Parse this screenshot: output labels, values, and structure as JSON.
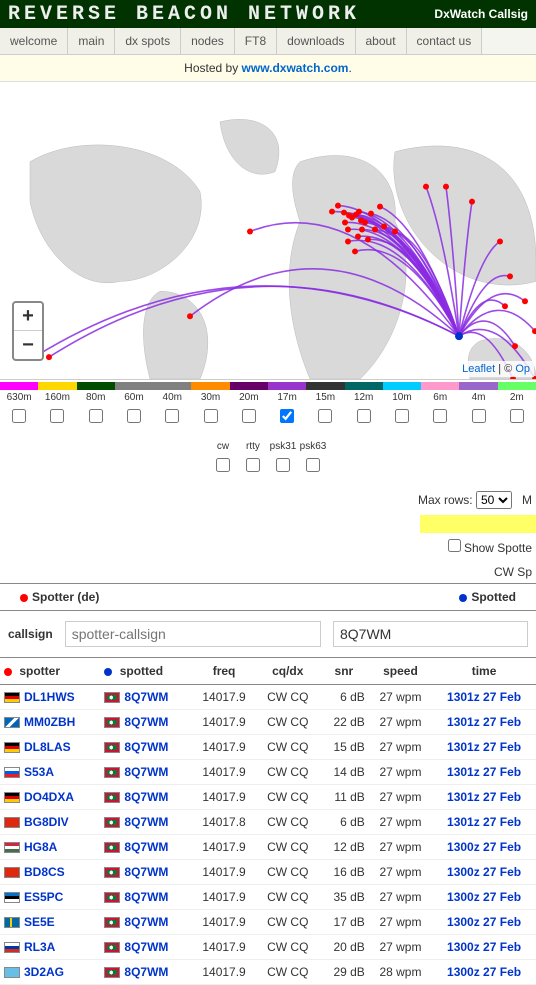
{
  "header": {
    "title": "REVERSE BEACON NETWORK",
    "right": "DxWatch Callsig"
  },
  "nav": [
    "welcome",
    "main",
    "dx spots",
    "nodes",
    "FT8",
    "downloads",
    "about",
    "contact us"
  ],
  "hosted": {
    "prefix": "Hosted by ",
    "link": "www.dxwatch.com",
    "suffix": "."
  },
  "map": {
    "zoom_in": "+",
    "zoom_out": "−",
    "attr_leaflet": "Leaflet",
    "attr_sep": " | © ",
    "attr_osm": "Op",
    "hub": [
      459,
      255
    ],
    "targets": [
      [
        332,
        130
      ],
      [
        338,
        124
      ],
      [
        344,
        131
      ],
      [
        349,
        134
      ],
      [
        345,
        141
      ],
      [
        352,
        136
      ],
      [
        348,
        148
      ],
      [
        356,
        133
      ],
      [
        359,
        130
      ],
      [
        361,
        139
      ],
      [
        362,
        148
      ],
      [
        358,
        155
      ],
      [
        365,
        141
      ],
      [
        371,
        132
      ],
      [
        375,
        148
      ],
      [
        380,
        125
      ],
      [
        355,
        170
      ],
      [
        348,
        160
      ],
      [
        368,
        158
      ],
      [
        384,
        145
      ],
      [
        395,
        150
      ],
      [
        426,
        105
      ],
      [
        446,
        105
      ],
      [
        472,
        120
      ],
      [
        500,
        160
      ],
      [
        510,
        195
      ],
      [
        505,
        225
      ],
      [
        525,
        220
      ],
      [
        515,
        265
      ],
      [
        535,
        250
      ],
      [
        535,
        298
      ],
      [
        513,
        298
      ],
      [
        190,
        235
      ],
      [
        36,
        275
      ],
      [
        49,
        276
      ],
      [
        250,
        150
      ]
    ],
    "land_color": "#d9d9d9",
    "ocean_gradient_top": "#f2f2f2",
    "ocean_gradient_bottom": "#ffffff",
    "arc_color": "#8a2be2",
    "hub_color": "#0033cc",
    "node_color": "#ff0000"
  },
  "bands": {
    "colors": [
      "#ff00ff",
      "#ffd700",
      "#004d00",
      "#808080",
      "#808080",
      "#ff8c00",
      "#660066",
      "#9933cc",
      "#333333",
      "#006666",
      "#00ccff",
      "#ff99cc",
      "#9966cc",
      "#66ff66"
    ],
    "labels": [
      "630m",
      "160m",
      "80m",
      "60m",
      "40m",
      "30m",
      "20m",
      "17m",
      "15m",
      "12m",
      "10m",
      "6m",
      "4m",
      "2m"
    ],
    "checked": [
      false,
      false,
      false,
      false,
      false,
      false,
      false,
      true,
      false,
      false,
      false,
      false,
      false,
      false
    ]
  },
  "modes": {
    "labels": [
      "cw",
      "rtty",
      "psk31",
      "psk63"
    ],
    "checked": [
      false,
      false,
      false,
      false
    ]
  },
  "controls": {
    "max_rows_label": "Max rows:",
    "max_rows_value": "50",
    "max_rows_trailing": "M",
    "show_spotters": "Show Spotte",
    "cw_label": "CW Sp"
  },
  "legend": {
    "spotter": "Spotter (de)",
    "spotted": "Spotted"
  },
  "filter": {
    "callsign_label": "callsign",
    "spotter_placeholder": "spotter-callsign",
    "spotted_value": "8Q7WM"
  },
  "table": {
    "columns": [
      "spotter",
      "spotted",
      "freq",
      "cq/dx",
      "snr",
      "speed",
      "time"
    ],
    "rows": [
      {
        "spotter_flag": "de",
        "spotter": "DL1HWS",
        "spotted_flag": "mv",
        "spotted": "8Q7WM",
        "freq": "14017.9",
        "cqdx": "CW CQ",
        "snr": "6 dB",
        "speed": "27 wpm",
        "time": "1301z 27 Feb"
      },
      {
        "spotter_flag": "sco",
        "spotter": "MM0ZBH",
        "spotted_flag": "mv",
        "spotted": "8Q7WM",
        "freq": "14017.9",
        "cqdx": "CW CQ",
        "snr": "22 dB",
        "speed": "27 wpm",
        "time": "1301z 27 Feb"
      },
      {
        "spotter_flag": "de",
        "spotter": "DL8LAS",
        "spotted_flag": "mv",
        "spotted": "8Q7WM",
        "freq": "14017.9",
        "cqdx": "CW CQ",
        "snr": "15 dB",
        "speed": "27 wpm",
        "time": "1301z 27 Feb"
      },
      {
        "spotter_flag": "si",
        "spotter": "S53A",
        "spotted_flag": "mv",
        "spotted": "8Q7WM",
        "freq": "14017.9",
        "cqdx": "CW CQ",
        "snr": "14 dB",
        "speed": "27 wpm",
        "time": "1301z 27 Feb"
      },
      {
        "spotter_flag": "de",
        "spotter": "DO4DXA",
        "spotted_flag": "mv",
        "spotted": "8Q7WM",
        "freq": "14017.9",
        "cqdx": "CW CQ",
        "snr": "11 dB",
        "speed": "27 wpm",
        "time": "1301z 27 Feb"
      },
      {
        "spotter_flag": "cn",
        "spotter": "BG8DIV",
        "spotted_flag": "mv",
        "spotted": "8Q7WM",
        "freq": "14017.8",
        "cqdx": "CW CQ",
        "snr": "6 dB",
        "speed": "27 wpm",
        "time": "1301z 27 Feb"
      },
      {
        "spotter_flag": "hu",
        "spotter": "HG8A",
        "spotted_flag": "mv",
        "spotted": "8Q7WM",
        "freq": "14017.9",
        "cqdx": "CW CQ",
        "snr": "12 dB",
        "speed": "27 wpm",
        "time": "1300z 27 Feb"
      },
      {
        "spotter_flag": "cn",
        "spotter": "BD8CS",
        "spotted_flag": "mv",
        "spotted": "8Q7WM",
        "freq": "14017.9",
        "cqdx": "CW CQ",
        "snr": "16 dB",
        "speed": "27 wpm",
        "time": "1300z 27 Feb"
      },
      {
        "spotter_flag": "ee",
        "spotter": "ES5PC",
        "spotted_flag": "mv",
        "spotted": "8Q7WM",
        "freq": "14017.9",
        "cqdx": "CW CQ",
        "snr": "35 dB",
        "speed": "27 wpm",
        "time": "1300z 27 Feb"
      },
      {
        "spotter_flag": "se",
        "spotter": "SE5E",
        "spotted_flag": "mv",
        "spotted": "8Q7WM",
        "freq": "14017.9",
        "cqdx": "CW CQ",
        "snr": "17 dB",
        "speed": "27 wpm",
        "time": "1300z 27 Feb"
      },
      {
        "spotter_flag": "ru",
        "spotter": "RL3A",
        "spotted_flag": "mv",
        "spotted": "8Q7WM",
        "freq": "14017.9",
        "cqdx": "CW CQ",
        "snr": "20 dB",
        "speed": "27 wpm",
        "time": "1300z 27 Feb"
      },
      {
        "spotter_flag": "fj",
        "spotter": "3D2AG",
        "spotted_flag": "mv",
        "spotted": "8Q7WM",
        "freq": "14017.9",
        "cqdx": "CW CQ",
        "snr": "29 dB",
        "speed": "28 wpm",
        "time": "1300z 27 Feb"
      }
    ]
  },
  "flags": {
    "de": "linear-gradient(to bottom,#000 33%,#dd0000 33%,#dd0000 66%,#ffce00 66%)",
    "sco": "linear-gradient(135deg,#0065bd 40%,#fff 40%,#fff 60%,#0065bd 60%),linear-gradient(45deg,#0065bd 40%,#fff 40%,#fff 60%,#0065bd 60%)",
    "si": "linear-gradient(to bottom,#fff 33%,#005ce5 33%,#005ce5 66%,#ed1c24 66%)",
    "cn": "linear-gradient(#de2910,#de2910)",
    "hu": "linear-gradient(to bottom,#cd2a3e 33%,#fff 33%,#fff 66%,#436f4d 66%)",
    "ee": "linear-gradient(to bottom,#0072ce 33%,#000 33%,#000 66%,#fff 66%)",
    "se": "linear-gradient(to right,#006aa7 35%,#fecc00 35%,#fecc00 50%,#006aa7 50%)",
    "ru": "linear-gradient(to bottom,#fff 33%,#0039a6 33%,#0039a6 66%,#d52b1e 66%)",
    "fj": "linear-gradient(#68bfe5,#68bfe5)",
    "mv": "radial-gradient(circle at 45% 50%,#fff 20%,transparent 21%),radial-gradient(circle at 55% 50%,#007e3a 22%,transparent 23%),linear-gradient(#007e3a,#007e3a) center/70% 60% no-repeat,linear-gradient(#d21034,#d21034)"
  }
}
